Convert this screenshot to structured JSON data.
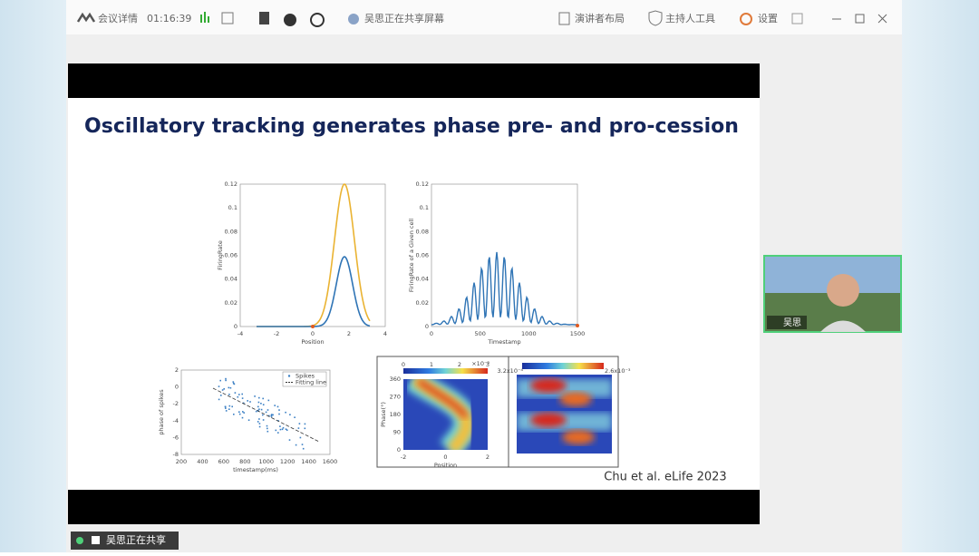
{
  "toolbar": {
    "meeting_info": "会议详情",
    "timer": "01:16:39",
    "sharing_status": "吴思正在共享屏幕",
    "layout": "演讲者布局",
    "host_tools": "主持人工具",
    "settings": "设置"
  },
  "slide": {
    "title": "Oscillatory tracking generates phase pre- and pro-cession",
    "citation": "Chu et al. eLife 2023",
    "figures": [
      {
        "xlabel": "Position",
        "ylabel": "FiringRate",
        "xticks": [
          -4,
          -2,
          0,
          2,
          4
        ],
        "yticks": [
          0,
          0.02,
          0.04,
          0.06,
          0.08,
          0.1,
          0.12
        ]
      },
      {
        "xlabel": "Timestamp",
        "ylabel": "FiringRate of a Given cell",
        "xticks": [
          0,
          500,
          1000,
          1500
        ],
        "yticks": [
          0,
          0.02,
          0.04,
          0.06,
          0.08,
          0.1,
          0.12
        ]
      },
      {
        "xlabel": "timestamp(ms)",
        "ylabel": "phase of spikes",
        "xticks": [
          200,
          400,
          600,
          800,
          1000,
          1200,
          1400,
          1600
        ],
        "yticks": [
          -8,
          -6,
          -4,
          -2,
          0,
          2
        ],
        "legend": [
          "Spikes",
          "Fitting line"
        ]
      },
      {
        "xlabel": "Position",
        "ylabel": "Phase(°)",
        "xticks": [
          -2,
          0,
          2
        ],
        "yticks": [
          0,
          90,
          180,
          270,
          360
        ],
        "colorbar_ticks": [
          0,
          1,
          2,
          3
        ],
        "colorbar_scale": "×10⁻³"
      },
      {
        "colorbar_min": "3.2x10⁻⁴",
        "colorbar_max": "2.6x10⁻³"
      }
    ]
  },
  "video": {
    "name": "吴思"
  },
  "share_banner": "吴思正在共享"
}
